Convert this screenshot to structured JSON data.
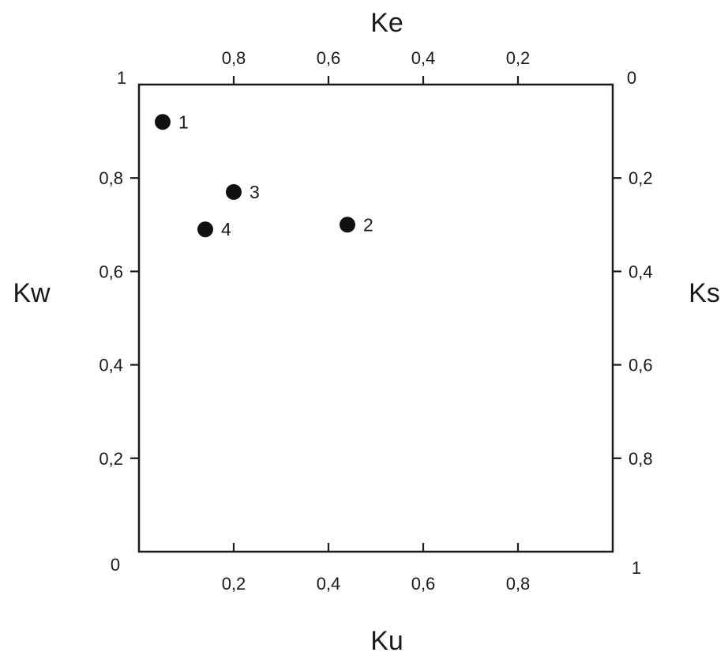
{
  "chart_data": {
    "type": "scatter",
    "title": "",
    "axes": {
      "bottom": {
        "label": "Ku",
        "range": [
          0,
          1
        ],
        "ticks": [
          0.2,
          0.4,
          0.6,
          0.8
        ],
        "tick_labels": [
          "0,2",
          "0,4",
          "0,6",
          "0,8"
        ]
      },
      "left": {
        "label": "Kw",
        "range": [
          0,
          1
        ],
        "ticks": [
          0.2,
          0.4,
          0.6,
          0.8
        ],
        "tick_labels": [
          "0,2",
          "0,4",
          "0,6",
          "0,8"
        ]
      },
      "top": {
        "label": "Ke",
        "range": [
          1,
          0
        ],
        "ticks": [
          0.8,
          0.6,
          0.4,
          0.2
        ],
        "tick_labels": [
          "0,8",
          "0,6",
          "0,4",
          "0,2"
        ]
      },
      "right": {
        "label": "Ks",
        "range": [
          0,
          1
        ],
        "ticks": [
          0.2,
          0.4,
          0.6,
          0.8
        ],
        "tick_labels": [
          "0,2",
          "0,4",
          "0,6",
          "0,8"
        ]
      }
    },
    "corner_labels": {
      "top_left": "1",
      "top_right": "0",
      "bottom_left": "0",
      "bottom_right": "1"
    },
    "points": [
      {
        "label": "1",
        "x": 0.05,
        "y": 0.92
      },
      {
        "label": "2",
        "x": 0.44,
        "y": 0.7
      },
      {
        "label": "3",
        "x": 0.2,
        "y": 0.77
      },
      {
        "label": "4",
        "x": 0.14,
        "y": 0.69
      }
    ],
    "grid": false,
    "legend": "none"
  }
}
